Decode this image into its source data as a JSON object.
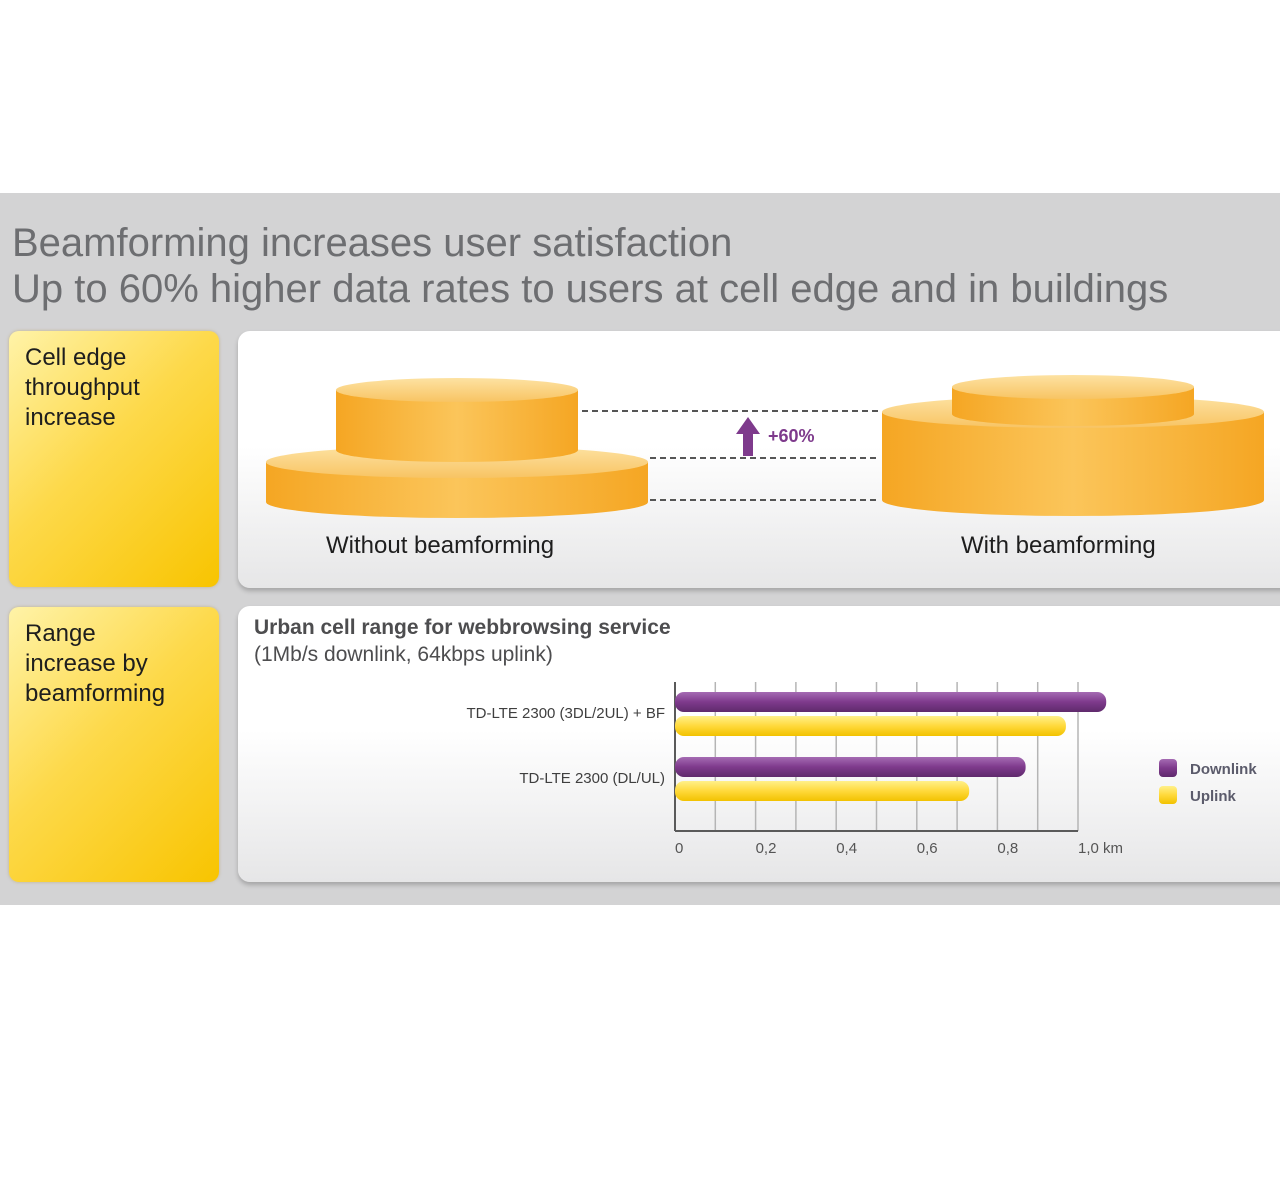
{
  "header": {
    "line1": "Beamforming increases user satisfaction",
    "line2": "Up to 60% higher data rates to users at cell edge and in buildings"
  },
  "sections": {
    "throughput": {
      "label_lines": [
        "Cell edge",
        "throughput",
        "increase"
      ],
      "without_label": "Without beamforming",
      "with_label": "With beamforming",
      "increase_label": "+60%"
    },
    "range": {
      "label_lines": [
        "Range",
        "increase by",
        "beamforming"
      ]
    }
  },
  "colors": {
    "accent_yellow": "#f8c400",
    "disk_orange": "#f6b33a",
    "downlink": "#7e3a8c",
    "uplink": "#ffd93b",
    "panel_gray": "#d3d3d4"
  },
  "chart_data": {
    "type": "bar",
    "orientation": "horizontal",
    "title": "Urban cell range for webbrowsing service",
    "subtitle": "(1Mb/s downlink, 64kbps uplink)",
    "categories": [
      "TD-LTE 2300 (3DL/2UL) + BF",
      "TD-LTE 2300 (DL/UL)"
    ],
    "series": [
      {
        "name": "Downlink",
        "values": [
          1.07,
          0.87
        ]
      },
      {
        "name": "Uplink",
        "values": [
          0.97,
          0.73
        ]
      }
    ],
    "xlim": [
      0,
      1.0
    ],
    "x_ticks": [
      0,
      0.2,
      0.4,
      0.6,
      0.8,
      1.0
    ],
    "x_tick_labels": [
      "0",
      "0,2",
      "0,4",
      "0,6",
      "0,8",
      "1,0 km"
    ],
    "grid": true,
    "legend": "right"
  }
}
